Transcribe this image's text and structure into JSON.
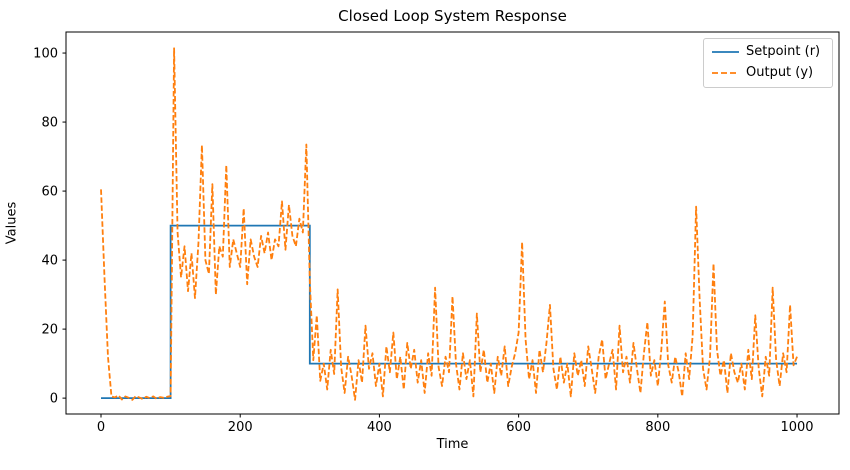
{
  "chart_data": {
    "type": "line",
    "title": "Closed Loop System Response",
    "xlabel": "Time",
    "ylabel": "Values",
    "xlim": [
      -50.3,
      1060.3
    ],
    "ylim": [
      -4.6,
      106.1
    ],
    "x_ticks": [
      0,
      200,
      400,
      600,
      800,
      1000
    ],
    "y_ticks": [
      0,
      20,
      40,
      60,
      80,
      100
    ],
    "grid": false,
    "legend_position": "upper right",
    "series": [
      {
        "name": "Setpoint (r)",
        "color": "#1f77b4",
        "style": "solid",
        "points": [
          [
            0,
            0
          ],
          [
            100,
            0
          ],
          [
            100,
            50
          ],
          [
            300,
            50
          ],
          [
            300,
            10
          ],
          [
            1000,
            10
          ]
        ]
      },
      {
        "name": "Output (y)",
        "color": "#ff7f0e",
        "style": "dashed",
        "x_start": 0,
        "x_step": 5,
        "values": [
          60.5,
          35,
          12,
          0.5,
          0.2,
          0.8,
          -0.4,
          0.5,
          0.1,
          -0.5,
          0.6,
          0.2,
          -0.3,
          0.4,
          0,
          0.5,
          -0.2,
          0.3,
          0.1,
          0.4,
          0.6,
          101.4,
          48,
          35,
          44,
          31,
          42,
          29,
          45,
          73.3,
          40,
          36,
          62,
          30,
          44,
          41,
          67.5,
          38,
          46,
          42,
          38,
          55,
          33,
          46,
          41,
          38,
          47,
          42,
          48,
          40,
          46,
          44,
          57,
          43,
          56,
          47,
          44,
          52,
          48,
          73.5,
          34,
          11,
          24,
          5,
          10,
          2.5,
          14,
          7,
          31.5,
          9,
          1.5,
          12,
          6.5,
          -0.5,
          11,
          4.5,
          21,
          8.5,
          13,
          3.5,
          10,
          0.5,
          15,
          7.5,
          19,
          5.5,
          12,
          2.5,
          16,
          8.5,
          14,
          4.5,
          11,
          1.5,
          13,
          6.5,
          32,
          9,
          3.5,
          12,
          7.5,
          29.5,
          10,
          2.5,
          13,
          5.5,
          11,
          0.5,
          24.5,
          7.5,
          14,
          4.5,
          10,
          1.5,
          12,
          6.5,
          15,
          3.5,
          9,
          13,
          19,
          45.2,
          17,
          5.5,
          11,
          1.5,
          14,
          7.5,
          16,
          27,
          8.5,
          2.5,
          12,
          4.5,
          10,
          0.5,
          13,
          6.5,
          11,
          3.5,
          15,
          8.5,
          1.5,
          12,
          17,
          5.5,
          10,
          14,
          2.5,
          21,
          7.5,
          12,
          4.5,
          16,
          8.5,
          1.5,
          13,
          22,
          6.5,
          11,
          3.5,
          14,
          28,
          9.5,
          4.5,
          12,
          7.5,
          0.5,
          13,
          5.5,
          18,
          55.5,
          29,
          8.5,
          2.5,
          12,
          39,
          14,
          6.5,
          11,
          1.5,
          13,
          7.5,
          4.5,
          10,
          2.5,
          14,
          5.5,
          24,
          8.5,
          0.5,
          12,
          6.5,
          32,
          11,
          3.5,
          13,
          7.5,
          27,
          9.5,
          12
        ]
      }
    ]
  }
}
